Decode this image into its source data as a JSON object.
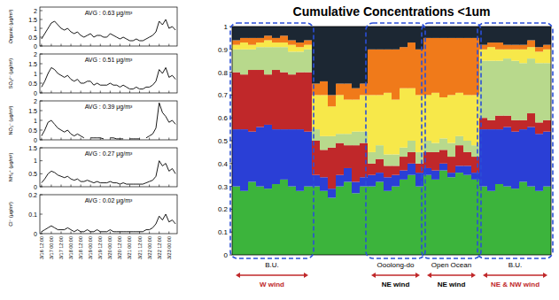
{
  "chart_data": [
    {
      "type": "line",
      "y_label": "Organic (μg/m³)",
      "annotation": "AVG : 0.63 μg/m³",
      "tick_labels": "y",
      "categories": [
        "3/16 12:00",
        null,
        null,
        "3/17 00:00",
        null,
        null,
        "3/17 12:00",
        null,
        null,
        "3/18 00:00",
        null,
        null,
        "3/18 12:00",
        null,
        null,
        "3/19 00:00",
        null,
        null,
        "3/19 12:00",
        null,
        null,
        "3/20 00:00",
        null,
        null,
        "3/20 12:00",
        null,
        null,
        "3/21 00:00",
        null,
        null,
        "3/21 12:00",
        null,
        null,
        "3/22 00:00",
        null,
        null,
        "3/22 12:00",
        null,
        null,
        "3/23 00:00",
        null,
        null
      ],
      "series": [
        {
          "color": "#000000",
          "values": [
            0.4,
            0.7,
            1.0,
            1.3,
            1.4,
            1.2,
            1.0,
            0.9,
            1.0,
            0.8,
            0.7,
            0.8,
            0.6,
            0.5,
            0.6,
            0.7,
            0.5,
            0.6,
            0.6,
            0.5,
            0.5,
            0.7,
            0.6,
            0.5,
            0.4,
            0.5,
            0.4,
            0.3,
            0.3,
            0.4,
            0.3,
            0.3,
            0.4,
            0.5,
            0.6,
            0.8,
            1.4,
            1.2,
            1.5,
            1.0,
            1.1,
            0.9
          ]
        }
      ],
      "ylim": [
        0,
        2.2
      ],
      "yticks": [
        0,
        0.5,
        1,
        1.5,
        2
      ]
    },
    {
      "type": "line",
      "y_label": "SO₄²⁻ (μg/m³)",
      "annotation": "AVG : 0.51 μg/m³",
      "tick_labels": "y",
      "categories": [
        "3/16 12:00",
        null,
        null,
        "3/17 00:00",
        null,
        null,
        "3/17 12:00",
        null,
        null,
        "3/18 00:00",
        null,
        null,
        "3/18 12:00",
        null,
        null,
        "3/19 00:00",
        null,
        null,
        "3/19 12:00",
        null,
        null,
        "3/20 00:00",
        null,
        null,
        "3/20 12:00",
        null,
        null,
        "3/21 00:00",
        null,
        null,
        "3/21 12:00",
        null,
        null,
        "3/22 00:00",
        null,
        null,
        "3/22 12:00",
        null,
        null,
        "3/23 00:00",
        null,
        null
      ],
      "series": [
        {
          "color": "#000000",
          "values": [
            0.3,
            0.6,
            1.0,
            1.3,
            1.2,
            1.0,
            0.9,
            0.8,
            0.9,
            0.7,
            0.6,
            0.7,
            0.5,
            0.5,
            0.6,
            0.6,
            0.4,
            0.5,
            0.4,
            0.4,
            0.4,
            0.5,
            0.4,
            0.4,
            0.3,
            0.4,
            0.3,
            0.2,
            0.2,
            0.3,
            0.2,
            0.2,
            0.3,
            0.3,
            0.4,
            0.6,
            1.2,
            1.0,
            1.3,
            0.8,
            0.9,
            0.7
          ]
        }
      ],
      "ylim": [
        0,
        2
      ],
      "yticks": [
        0,
        0.5,
        1,
        1.5,
        2
      ]
    },
    {
      "type": "line",
      "y_label": "NO₃⁻ (μg/m³)",
      "annotation": "AVG : 0.39 μg/m³",
      "tick_labels": "y",
      "categories": [
        "3/16 12:00",
        null,
        null,
        "3/17 00:00",
        null,
        null,
        "3/17 12:00",
        null,
        null,
        "3/18 00:00",
        null,
        null,
        "3/18 12:00",
        null,
        null,
        "3/19 00:00",
        null,
        null,
        "3/19 12:00",
        null,
        null,
        "3/20 00:00",
        null,
        null,
        "3/20 12:00",
        null,
        null,
        "3/21 00:00",
        null,
        null,
        "3/21 12:00",
        null,
        null,
        "3/22 00:00",
        null,
        null,
        "3/22 12:00",
        null,
        null,
        "3/23 00:00",
        null,
        null
      ],
      "series": [
        {
          "color": "#000000",
          "values": [
            0.2,
            0.5,
            0.9,
            1.0,
            0.8,
            0.6,
            0.5,
            0.4,
            0.5,
            0.3,
            0.2,
            0.3,
            0.2,
            0.1,
            null,
            0.1,
            0.1,
            0.1,
            0.1,
            0.05,
            null,
            0.1,
            0.1,
            0.05,
            0.05,
            0.05,
            null,
            0.05,
            0.05,
            0.05,
            0.05,
            null,
            0.1,
            0.2,
            0.3,
            0.6,
            1.9,
            1.4,
            1.2,
            0.9,
            1.0,
            0.8
          ]
        }
      ],
      "ylim": [
        0,
        2
      ],
      "yticks": [
        0,
        0.5,
        1,
        1.5,
        2
      ]
    },
    {
      "type": "line",
      "y_label": "NH₄⁺ (μg/m³)",
      "annotation": "AVG : 0.27 μg/m³",
      "tick_labels": "y",
      "categories": [
        "3/16 12:00",
        null,
        null,
        "3/17 00:00",
        null,
        null,
        "3/17 12:00",
        null,
        null,
        "3/18 00:00",
        null,
        null,
        "3/18 12:00",
        null,
        null,
        "3/19 00:00",
        null,
        null,
        "3/19 12:00",
        null,
        null,
        "3/20 00:00",
        null,
        null,
        "3/20 12:00",
        null,
        null,
        "3/21 00:00",
        null,
        null,
        "3/21 12:00",
        null,
        null,
        "3/22 00:00",
        null,
        null,
        "3/22 12:00",
        null,
        null,
        "3/23 00:00",
        null,
        null
      ],
      "series": [
        {
          "color": "#000000",
          "values": [
            0.15,
            0.3,
            0.5,
            0.6,
            0.55,
            0.45,
            0.4,
            0.35,
            0.4,
            0.3,
            0.25,
            0.3,
            0.2,
            0.2,
            0.25,
            0.2,
            0.15,
            0.2,
            0.15,
            0.15,
            0.15,
            0.2,
            0.15,
            0.15,
            0.1,
            0.15,
            0.1,
            0.1,
            0.1,
            0.1,
            0.1,
            0.1,
            0.15,
            0.2,
            0.25,
            0.4,
            1.0,
            0.8,
            0.9,
            0.6,
            0.7,
            0.5
          ]
        }
      ],
      "ylim": [
        0,
        1.5
      ],
      "yticks": [
        0,
        0.5,
        1,
        1.5
      ]
    },
    {
      "type": "line",
      "y_label": "Cl⁻ (μg/m³)",
      "annotation": "AVG : 0.02 μg/m³",
      "tick_labels": true,
      "categories": [
        "3/16 12:00",
        null,
        null,
        "3/17 00:00",
        null,
        null,
        "3/17 12:00",
        null,
        null,
        "3/18 00:00",
        null,
        null,
        "3/18 12:00",
        null,
        null,
        "3/19 00:00",
        null,
        null,
        "3/19 12:00",
        null,
        null,
        "3/20 00:00",
        null,
        null,
        "3/20 12:00",
        null,
        null,
        "3/21 00:00",
        null,
        null,
        "3/21 12:00",
        null,
        null,
        "3/22 00:00",
        null,
        null,
        "3/22 12:00",
        null,
        null,
        "3/23 00:00",
        null,
        null
      ],
      "series": [
        {
          "color": "#000000",
          "values": [
            0.01,
            0.02,
            0.03,
            0.04,
            0.03,
            0.02,
            0.02,
            0.02,
            0.03,
            0.02,
            0.01,
            0.02,
            0.01,
            0.01,
            0.02,
            0.01,
            0.01,
            0.02,
            0.01,
            0.01,
            0.01,
            0.02,
            0.01,
            0.01,
            0.01,
            0.01,
            0.01,
            0.01,
            0.01,
            0.01,
            0.01,
            0.01,
            0.02,
            0.02,
            0.03,
            0.05,
            0.09,
            0.07,
            0.1,
            0.06,
            0.07,
            0.05
          ]
        }
      ],
      "ylim": [
        0,
        0.2
      ],
      "yticks": [
        0,
        0.1,
        0.2
      ]
    },
    {
      "type": "bar",
      "stacked": true,
      "title": "Cumulative Concentrations <1um",
      "tick_labels": "y",
      "categories": [
        null,
        null,
        null,
        null,
        null,
        null,
        null,
        null,
        null,
        null,
        null,
        null,
        null,
        null,
        null,
        null,
        null,
        null,
        null,
        null,
        null,
        null,
        null,
        null,
        null,
        null,
        null,
        null,
        null,
        null,
        null,
        null,
        null,
        null,
        null,
        null,
        null,
        null,
        null,
        null
      ],
      "series": [
        {
          "color": "#3cb43c",
          "values": [
            0.3,
            0.28,
            0.32,
            0.3,
            0.29,
            0.31,
            0.33,
            0.3,
            0.28,
            0.3,
            0.3,
            0.28,
            0.25,
            0.3,
            0.32,
            0.27,
            0.3,
            0.3,
            0.32,
            0.28,
            0.3,
            0.33,
            0.35,
            0.3,
            0.35,
            0.33,
            0.37,
            0.34,
            0.36,
            0.35,
            0.33,
            0.3,
            0.28,
            0.31,
            0.3,
            0.29,
            0.32,
            0.3,
            0.28,
            0.3
          ]
        },
        {
          "color": "#2a3fd6",
          "values": [
            0.25,
            0.27,
            0.22,
            0.26,
            0.28,
            0.24,
            0.22,
            0.25,
            0.27,
            0.24,
            0.05,
            0.06,
            0.04,
            0.05,
            0.06,
            0.05,
            0.04,
            0.05,
            0.04,
            0.06,
            0.05,
            0.04,
            0.05,
            0.06,
            0.03,
            0.04,
            0.03,
            0.02,
            0.03,
            0.04,
            0.03,
            0.25,
            0.27,
            0.24,
            0.26,
            0.25,
            0.23,
            0.26,
            0.25,
            0.24
          ]
        },
        {
          "color": "#c0282a",
          "values": [
            0.25,
            0.24,
            0.27,
            0.25,
            0.22,
            0.26,
            0.25,
            0.24,
            0.25,
            0.26,
            0.15,
            0.12,
            0.18,
            0.14,
            0.1,
            0.16,
            0.15,
            0.05,
            0.06,
            0.05,
            0.04,
            0.06,
            0.05,
            0.04,
            0.07,
            0.08,
            0.06,
            0.07,
            0.09,
            0.06,
            0.07,
            0.05,
            0.04,
            0.06,
            0.05,
            0.05,
            0.04,
            0.06,
            0.05,
            0.05
          ]
        },
        {
          "color": "#b8d98c",
          "values": [
            0.1,
            0.11,
            0.09,
            0.1,
            0.12,
            0.1,
            0.11,
            0.1,
            0.09,
            0.1,
            0.05,
            0.06,
            0.05,
            0.04,
            0.05,
            0.06,
            0.05,
            0.05,
            0.06,
            0.05,
            0.05,
            0.04,
            0.05,
            0.05,
            0.05,
            0.04,
            0.05,
            0.06,
            0.04,
            0.05,
            0.05,
            0.25,
            0.26,
            0.24,
            0.25,
            0.26,
            0.25,
            0.24,
            0.26,
            0.25
          ]
        },
        {
          "color": "#f7e84a",
          "values": [
            0.02,
            0.03,
            0.02,
            0.02,
            0.03,
            0.02,
            0.02,
            0.03,
            0.02,
            0.02,
            0.15,
            0.18,
            0.13,
            0.17,
            0.15,
            0.14,
            0.16,
            0.25,
            0.22,
            0.27,
            0.24,
            0.26,
            0.23,
            0.25,
            0.2,
            0.22,
            0.18,
            0.21,
            0.19,
            0.2,
            0.22,
            0.05,
            0.06,
            0.05,
            0.04,
            0.05,
            0.06,
            0.05,
            0.05,
            0.06
          ]
        },
        {
          "color": "#f07a1a",
          "values": [
            0.02,
            0.02,
            0.03,
            0.02,
            0.02,
            0.02,
            0.03,
            0.02,
            0.02,
            0.02,
            0.05,
            0.06,
            0.05,
            0.05,
            0.07,
            0.05,
            0.05,
            0.2,
            0.2,
            0.19,
            0.22,
            0.18,
            0.2,
            0.2,
            0.25,
            0.24,
            0.26,
            0.25,
            0.24,
            0.25,
            0.25,
            0.02,
            0.02,
            0.03,
            0.02,
            0.02,
            0.02,
            0.03,
            0.02,
            0.02
          ]
        },
        {
          "color": "#1c2733",
          "values": [
            0.06,
            0.05,
            0.05,
            0.05,
            0.04,
            0.05,
            0.04,
            0.06,
            0.07,
            0.06,
            0.25,
            0.24,
            0.3,
            0.25,
            0.25,
            0.27,
            0.25,
            0.1,
            0.1,
            0.1,
            0.1,
            0.09,
            0.07,
            0.1,
            0.05,
            0.05,
            0.05,
            0.05,
            0.05,
            0.05,
            0.05,
            0.08,
            0.07,
            0.07,
            0.08,
            0.08,
            0.08,
            0.06,
            0.09,
            0.08
          ]
        }
      ],
      "ylim": [
        0,
        1
      ],
      "yticks": [
        0,
        0.1,
        0.2,
        0.3,
        0.4,
        0.5,
        0.6,
        0.7,
        0.8,
        0.9,
        1
      ],
      "regions": [
        {
          "label": "B.U.",
          "wind": "W wind",
          "start": 0,
          "end": 9,
          "color": "#c0282a"
        },
        {
          "label": "Ooolong-do",
          "wind": "NE wind",
          "start": 17,
          "end": 23,
          "color": "#000000"
        },
        {
          "label": "Open Ocean",
          "wind": "NE wind",
          "start": 24,
          "end": 30,
          "color": "#000000"
        },
        {
          "label": "B.U.",
          "wind": "NE & NW wind",
          "start": 31,
          "end": 39,
          "color": "#c0282a"
        }
      ]
    }
  ]
}
